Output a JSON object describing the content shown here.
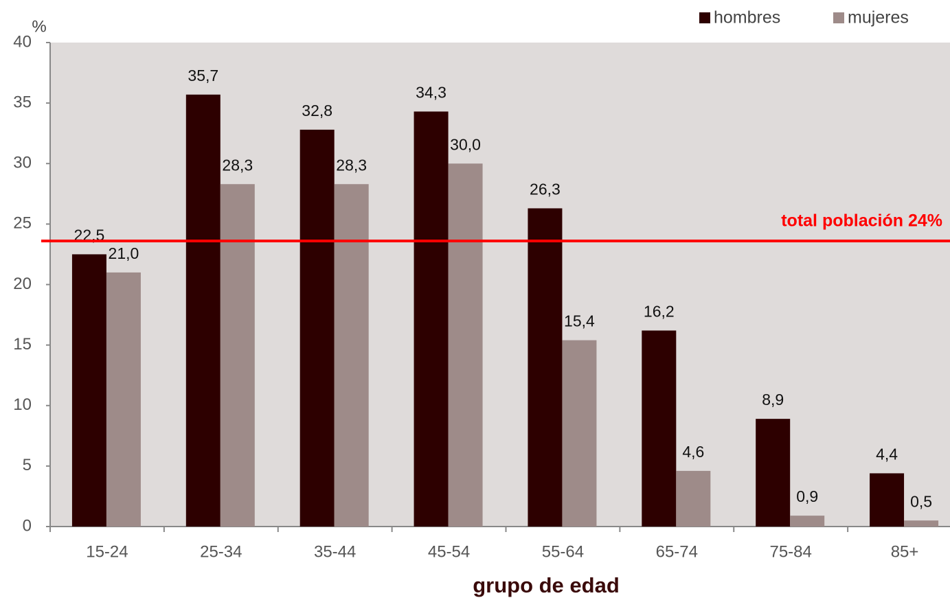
{
  "chart_data": {
    "type": "bar",
    "y_unit": "%",
    "x_label": "grupo de edad",
    "categories": [
      "15-24",
      "25-34",
      "35-44",
      "45-54",
      "55-64",
      "65-74",
      "75-84",
      "85+"
    ],
    "series": [
      {
        "name": "hombres",
        "color": "#2d0000",
        "values": [
          22.5,
          35.7,
          32.8,
          34.3,
          26.3,
          16.2,
          8.9,
          4.4
        ],
        "value_labels": [
          "22,5",
          "35,7",
          "32,8",
          "34,3",
          "26,3",
          "16,2",
          "8,9",
          "4,4"
        ]
      },
      {
        "name": "mujeres",
        "color": "#9e8b89",
        "values": [
          21.0,
          28.3,
          28.3,
          30.0,
          15.4,
          4.6,
          0.9,
          0.5
        ],
        "value_labels": [
          "21,0",
          "28,3",
          "28,3",
          "30,0",
          "15,4",
          "4,6",
          "0,9",
          "0,5"
        ]
      }
    ],
    "reference_line": {
      "value": 23.6,
      "label": "total población 24%",
      "color": "#ff0000"
    },
    "ylim": [
      0,
      40
    ],
    "yticks": [
      0,
      5,
      10,
      15,
      20,
      25,
      30,
      35,
      40
    ],
    "legend": "top-right"
  }
}
